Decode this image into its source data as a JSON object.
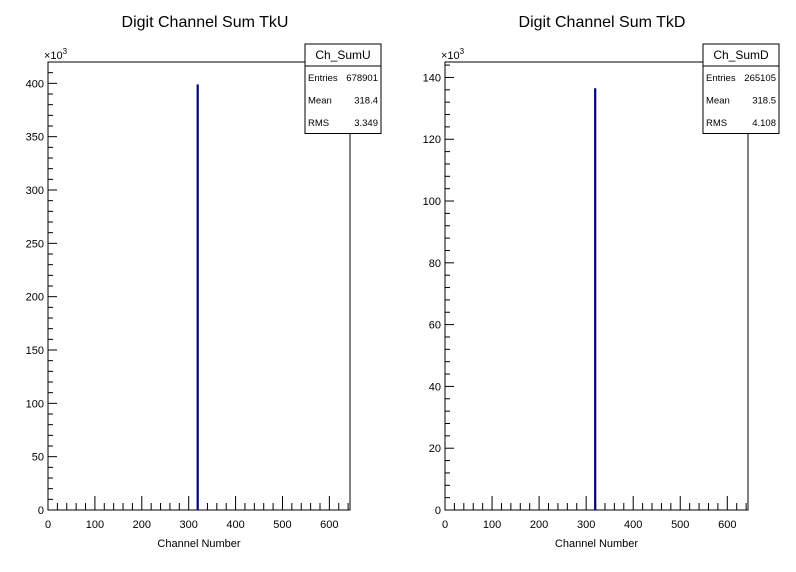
{
  "chart_data": [
    {
      "type": "bar",
      "title": "Digit Channel Sum TkU",
      "xlabel": "Channel Number",
      "ylabel": "",
      "xlim": [
        0,
        644
      ],
      "ylim": [
        0,
        420000
      ],
      "y_multiplier_label": "×10",
      "y_multiplier_exp": "3",
      "x_ticks": [
        "0",
        "100",
        "200",
        "300",
        "400",
        "500",
        "600"
      ],
      "y_ticks": [
        "0",
        "50",
        "100",
        "150",
        "200",
        "250",
        "300",
        "350",
        "400"
      ],
      "series": [
        {
          "x": [
            319
          ],
          "values": [
            399000
          ]
        }
      ],
      "bar_color": "#000080",
      "stats": {
        "name": "Ch_SumU",
        "rows": [
          {
            "label": "Entries",
            "value": "678901"
          },
          {
            "label": "Mean",
            "value": "318.4"
          },
          {
            "label": "RMS",
            "value": "3.349"
          }
        ]
      }
    },
    {
      "type": "bar",
      "title": "Digit Channel Sum TkD",
      "xlabel": "Channel Number",
      "ylabel": "",
      "xlim": [
        0,
        644
      ],
      "ylim": [
        0,
        145000
      ],
      "y_multiplier_label": "×10",
      "y_multiplier_exp": "3",
      "x_ticks": [
        "0",
        "100",
        "200",
        "300",
        "400",
        "500",
        "600"
      ],
      "y_ticks": [
        "0",
        "20",
        "40",
        "60",
        "80",
        "100",
        "120",
        "140"
      ],
      "series": [
        {
          "x": [
            319
          ],
          "values": [
            136500
          ]
        }
      ],
      "bar_color": "#000080",
      "stats": {
        "name": "Ch_SumD",
        "rows": [
          {
            "label": "Entries",
            "value": "265105"
          },
          {
            "label": "Mean",
            "value": "318.5"
          },
          {
            "label": "RMS",
            "value": "4.108"
          }
        ]
      }
    }
  ]
}
